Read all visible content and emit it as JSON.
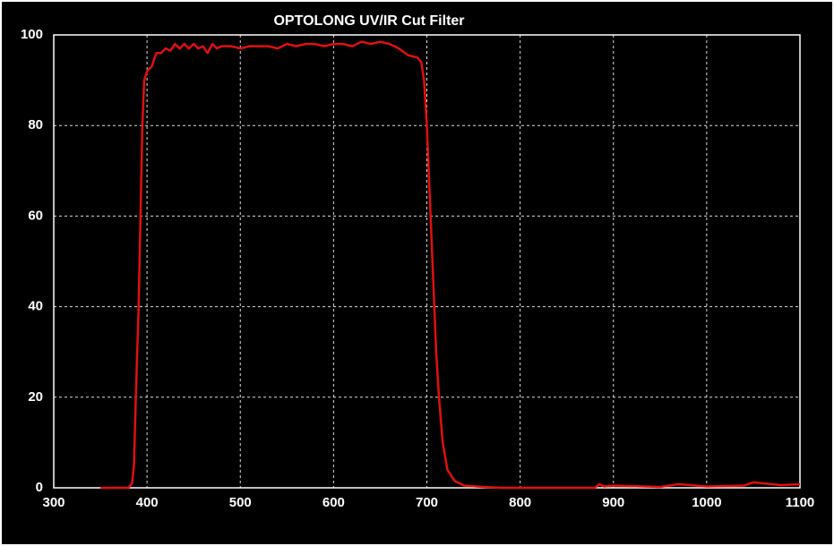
{
  "chart_data": {
    "type": "line",
    "title": "OPTOLONG UV/IR Cut Filter",
    "x": [
      350,
      380,
      384,
      386,
      388,
      391,
      393,
      395,
      397,
      400,
      405,
      410,
      415,
      420,
      425,
      430,
      435,
      440,
      445,
      450,
      455,
      460,
      465,
      470,
      475,
      480,
      490,
      500,
      510,
      520,
      530,
      540,
      550,
      560,
      570,
      580,
      590,
      600,
      610,
      620,
      630,
      640,
      650,
      660,
      670,
      680,
      690,
      694,
      697,
      700,
      702,
      704,
      706,
      708,
      710,
      713,
      717,
      722,
      730,
      740,
      760,
      780,
      800,
      850,
      880,
      885,
      890,
      900,
      950,
      960,
      970,
      1000,
      1040,
      1050,
      1060,
      1080,
      1100
    ],
    "values": [
      0,
      0,
      1,
      5,
      20,
      40,
      60,
      80,
      90,
      92,
      93,
      96,
      96,
      97,
      96.5,
      98,
      97,
      98,
      97,
      98,
      97,
      97.5,
      96,
      98,
      97,
      97.5,
      97.5,
      97,
      97.5,
      97.5,
      97.5,
      97,
      98,
      97.5,
      98,
      98,
      97.5,
      98,
      98,
      97.5,
      98.5,
      98,
      98.5,
      98,
      97,
      95.5,
      95,
      94,
      90,
      80,
      70,
      60,
      50,
      40,
      30,
      20,
      10,
      4,
      1.5,
      0.5,
      0.2,
      0,
      0,
      0,
      0,
      0.8,
      0.3,
      0.5,
      0.2,
      0.5,
      0.8,
      0.3,
      0.5,
      1.2,
      1,
      0.6,
      0.8
    ],
    "color": "#e01010",
    "xlim": [
      300,
      1100
    ],
    "xticks": [
      300,
      400,
      500,
      600,
      700,
      800,
      900,
      1000,
      1100
    ],
    "ylim": [
      0,
      100
    ],
    "yticks": [
      0,
      20,
      40,
      60,
      80,
      100
    ],
    "grid": true
  }
}
